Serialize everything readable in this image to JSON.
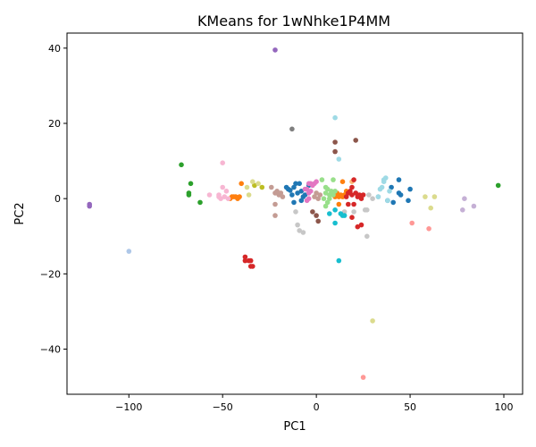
{
  "chart_data": {
    "type": "scatter",
    "title": "KMeans for 1wNhke1P4MM",
    "xlabel": "PC1",
    "ylabel": "PC2",
    "xlim": [
      -133,
      110
    ],
    "ylim": [
      -52,
      44
    ],
    "xticks": [
      -100,
      -50,
      0,
      50,
      100
    ],
    "yticks": [
      -40,
      -20,
      0,
      20,
      40
    ],
    "xtick_labels": [
      "−100",
      "−50",
      "0",
      "50",
      "100"
    ],
    "ytick_labels": [
      "−40",
      "−20",
      "0",
      "20",
      "40"
    ],
    "grid": false,
    "legend": "none",
    "series": [
      {
        "color": "#1f77b4",
        "points": [
          [
            -15,
            2.5
          ],
          [
            -14,
            2.2
          ],
          [
            -12,
            3
          ],
          [
            -11,
            4
          ],
          [
            -13,
            1
          ],
          [
            -9,
            4
          ],
          [
            -8,
            2
          ],
          [
            -7,
            0.5
          ],
          [
            -10,
            1.5
          ],
          [
            -12,
            -1
          ],
          [
            -8,
            -0.5
          ],
          [
            -6,
            1
          ],
          [
            -4,
            3.5
          ],
          [
            -16,
            3
          ],
          [
            40,
            3
          ],
          [
            41,
            -1
          ],
          [
            44,
            5
          ],
          [
            44,
            1.5
          ],
          [
            45,
            1
          ],
          [
            49,
            -0.5
          ],
          [
            50,
            2.5
          ],
          [
            38,
            -0.5
          ]
        ]
      },
      {
        "color": "#aec7e8",
        "points": [
          [
            -100,
            -14
          ]
        ]
      },
      {
        "color": "#ff7f0e",
        "points": [
          [
            -46,
            0
          ],
          [
            -45,
            0.5
          ],
          [
            -44,
            0.5
          ],
          [
            -43,
            0.5
          ],
          [
            -42,
            0
          ],
          [
            -40,
            4
          ],
          [
            -41,
            0.5
          ],
          [
            10,
            0.5
          ],
          [
            11,
            1.5
          ],
          [
            12,
            0.5
          ],
          [
            13,
            1
          ],
          [
            14,
            0.5
          ],
          [
            15,
            1
          ],
          [
            12,
            -1.5
          ],
          [
            9,
            1
          ],
          [
            14,
            4.5
          ],
          [
            16,
            2
          ]
        ]
      },
      {
        "color": "#ffbb78",
        "points": [
          [
            19,
            4.5
          ]
        ]
      },
      {
        "color": "#2ca02c",
        "points": [
          [
            -72,
            9
          ],
          [
            -67,
            4
          ],
          [
            -68,
            1.5
          ],
          [
            -68,
            1
          ],
          [
            -62,
            -1
          ],
          [
            97,
            3.5
          ]
        ]
      },
      {
        "color": "#98df8a",
        "points": [
          [
            3,
            5
          ],
          [
            5,
            3
          ],
          [
            5,
            1.5
          ],
          [
            6,
            2.5
          ],
          [
            7,
            1
          ],
          [
            8,
            2
          ],
          [
            9,
            1
          ],
          [
            9,
            5
          ],
          [
            10,
            2
          ],
          [
            6,
            -1
          ],
          [
            7,
            0
          ],
          [
            4,
            0
          ],
          [
            5,
            -2
          ],
          [
            8,
            1.5
          ]
        ]
      },
      {
        "color": "#d62728",
        "points": [
          [
            -38,
            -15.5
          ],
          [
            -38,
            -16.5
          ],
          [
            -36,
            -16.5
          ],
          [
            -35,
            -16.5
          ],
          [
            -35,
            -18
          ],
          [
            -34,
            -18
          ],
          [
            16,
            0.5
          ],
          [
            17,
            1.5
          ],
          [
            18,
            2
          ],
          [
            19,
            3
          ],
          [
            19,
            1
          ],
          [
            20,
            -1.5
          ],
          [
            21,
            1.5
          ],
          [
            22,
            0.5
          ],
          [
            23,
            1
          ],
          [
            24,
            0
          ],
          [
            25,
            1
          ],
          [
            17,
            -1.5
          ],
          [
            19,
            -5
          ],
          [
            22,
            -7.5
          ],
          [
            24,
            -7
          ],
          [
            20,
            5
          ]
        ]
      },
      {
        "color": "#ff9896",
        "points": [
          [
            51,
            -6.5
          ],
          [
            60,
            -8
          ],
          [
            25,
            -47.5
          ]
        ]
      },
      {
        "color": "#9467bd",
        "points": [
          [
            -121,
            -1.5
          ],
          [
            -121,
            -2
          ],
          [
            -22,
            39.5
          ]
        ]
      },
      {
        "color": "#c5b0d5",
        "points": [
          [
            78,
            -3
          ],
          [
            79,
            0
          ],
          [
            84,
            -2
          ]
        ]
      },
      {
        "color": "#8c564b",
        "points": [
          [
            10,
            12.5
          ],
          [
            10,
            15
          ],
          [
            21,
            15.5
          ],
          [
            -2,
            -3.5
          ],
          [
            0,
            -4.5
          ],
          [
            1,
            -6
          ]
        ]
      },
      {
        "color": "#c49c94",
        "points": [
          [
            -24,
            3
          ],
          [
            -22,
            1.5
          ],
          [
            -21,
            2
          ],
          [
            -20,
            1
          ],
          [
            -19,
            1.5
          ],
          [
            -18,
            0.5
          ],
          [
            -22,
            -1.5
          ],
          [
            -22,
            -4.5
          ],
          [
            -1,
            0.5
          ],
          [
            0,
            1.5
          ],
          [
            1,
            0
          ],
          [
            2,
            1
          ]
        ]
      },
      {
        "color": "#e377c2",
        "points": [
          [
            -5,
            2.5
          ],
          [
            -4,
            1.5
          ],
          [
            -3,
            2
          ],
          [
            -4,
            0
          ],
          [
            -5,
            -0.5
          ],
          [
            -3,
            4
          ],
          [
            -1,
            4
          ],
          [
            0,
            4.5
          ],
          [
            -2,
            3.5
          ],
          [
            -4,
            4
          ],
          [
            -6,
            2.5
          ]
        ]
      },
      {
        "color": "#f7b6d2",
        "points": [
          [
            -57,
            1
          ],
          [
            -52,
            1
          ],
          [
            -51,
            0
          ],
          [
            -50,
            3
          ],
          [
            -49,
            0.5
          ],
          [
            -48,
            2
          ],
          [
            -47,
            0
          ],
          [
            -52,
            0.5
          ],
          [
            -50,
            9.5
          ]
        ]
      },
      {
        "color": "#7f7f7f",
        "points": [
          [
            -13,
            18.5
          ]
        ]
      },
      {
        "color": "#c7c7c7",
        "points": [
          [
            -11,
            -3.5
          ],
          [
            -10,
            -7
          ],
          [
            -9,
            -8.5
          ],
          [
            -7,
            -9
          ],
          [
            15,
            -3.5
          ],
          [
            20,
            -3.5
          ],
          [
            26,
            -3
          ],
          [
            27,
            -3
          ],
          [
            27,
            -10
          ],
          [
            30,
            0
          ],
          [
            33,
            0.5
          ],
          [
            28,
            1
          ]
        ]
      },
      {
        "color": "#bcbd22",
        "points": [
          [
            -29,
            3
          ],
          [
            -33,
            3.5
          ]
        ]
      },
      {
        "color": "#dbdb8d",
        "points": [
          [
            -37,
            3
          ],
          [
            -36,
            1
          ],
          [
            -34,
            4.5
          ],
          [
            -31,
            4
          ],
          [
            58,
            0.5
          ],
          [
            61,
            -2.5
          ],
          [
            63,
            0.5
          ],
          [
            30,
            -32.5
          ]
        ]
      },
      {
        "color": "#17becf",
        "points": [
          [
            7,
            -4
          ],
          [
            10,
            -3
          ],
          [
            10,
            -6.5
          ],
          [
            13,
            -4
          ],
          [
            14,
            -4.5
          ],
          [
            15,
            -4.5
          ],
          [
            12,
            -16.5
          ]
        ]
      },
      {
        "color": "#9edae5",
        "points": [
          [
            10,
            21.5
          ],
          [
            12,
            10.5
          ],
          [
            33,
            0.5
          ],
          [
            34,
            2.5
          ],
          [
            35,
            3
          ],
          [
            36,
            4.5
          ],
          [
            36,
            5
          ],
          [
            37,
            5.5
          ],
          [
            38,
            -0.5
          ],
          [
            39,
            2
          ]
        ]
      }
    ]
  }
}
